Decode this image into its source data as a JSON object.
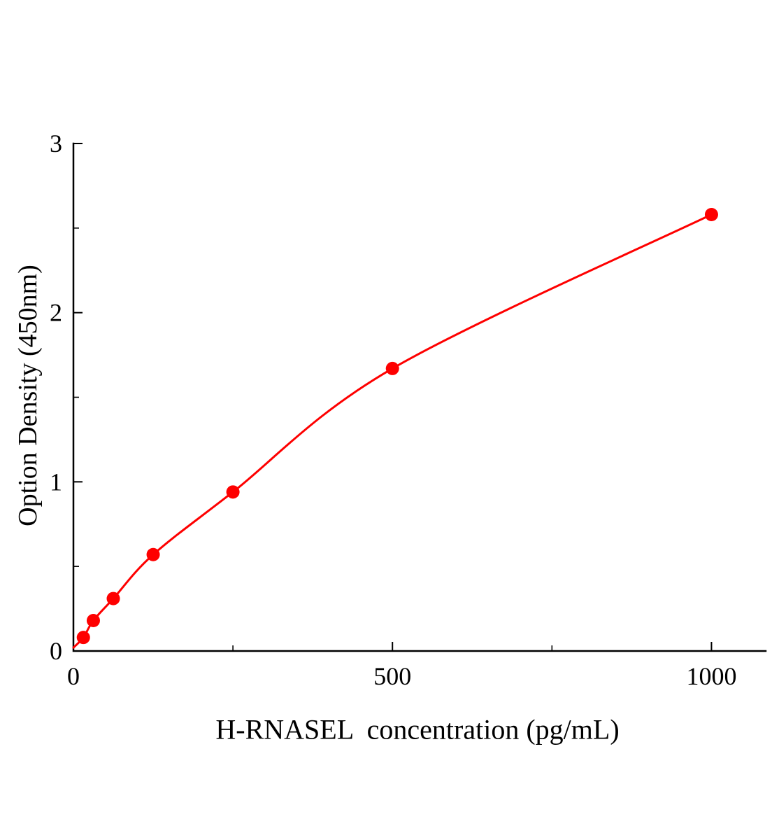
{
  "page": {
    "background": "#ffffff"
  },
  "chart_data": {
    "type": "scatter",
    "title": "",
    "xlabel": "H-RNASEL  concentration (pg/mL)",
    "ylabel": "Option Density (450nm)",
    "x": [
      15.6,
      31.2,
      62.5,
      125,
      250,
      500,
      1000
    ],
    "y": [
      0.08,
      0.18,
      0.31,
      0.57,
      0.94,
      1.67,
      2.58
    ],
    "curve_origin": {
      "x": 0,
      "y": 0.02
    },
    "xlim": [
      0,
      1085
    ],
    "ylim": [
      0,
      3
    ],
    "x_ticks": [
      0,
      500,
      1000
    ],
    "y_ticks": [
      0,
      1,
      2,
      3
    ],
    "x_minor_ticks": [
      250,
      750
    ],
    "y_minor_ticks": [
      0.5,
      1.5,
      2.5
    ],
    "grid": false,
    "legend": "none",
    "line_color": "#fe0000",
    "marker_color": "#fe0000",
    "axis_color": "#000000"
  }
}
